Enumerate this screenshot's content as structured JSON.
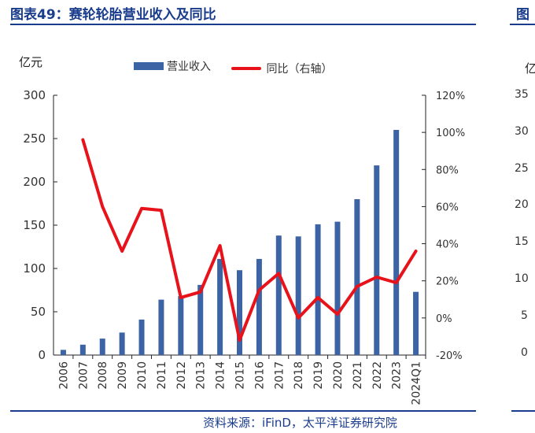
{
  "header": {
    "title": "图表49：赛轮轮胎营业收入及同比",
    "right_title_fragment": "图"
  },
  "source": "资料来源：iFinD，太平洋证券研究院",
  "ghost_panel": {
    "unit": "亿",
    "ticks": [
      "35",
      "30",
      "25",
      "20",
      "15",
      "10",
      "5",
      "0"
    ]
  },
  "colors": {
    "bar": "#3c63a3",
    "line": "#e8121a",
    "title": "#1a3c8c"
  },
  "chart_data": {
    "type": "bar",
    "title": "",
    "ylabel": "亿元",
    "categories": [
      "2006",
      "2007",
      "2008",
      "2009",
      "2010",
      "2011",
      "2012",
      "2013",
      "2014",
      "2015",
      "2016",
      "2017",
      "2018",
      "2019",
      "2020",
      "2021",
      "2022",
      "2023",
      "2024Q1"
    ],
    "series": [
      {
        "name": "营业收入",
        "type": "bar",
        "axis": "left",
        "values": [
          6,
          12,
          19,
          26,
          41,
          64,
          68,
          81,
          111,
          98,
          111,
          138,
          137,
          151,
          154,
          180,
          219,
          260,
          73
        ]
      },
      {
        "name": "同比（右轴）",
        "type": "line",
        "axis": "right",
        "values": [
          null,
          96,
          60,
          36,
          59,
          58,
          11,
          14,
          39,
          -12,
          15,
          24,
          0,
          11,
          2,
          17,
          22,
          19,
          36
        ]
      }
    ],
    "ylim": [
      0,
      300
    ],
    "yticks": [
      "0",
      "50",
      "100",
      "150",
      "200",
      "250",
      "300"
    ],
    "y2lim": [
      -20,
      120
    ],
    "y2ticks": [
      "-20%",
      "0%",
      "20%",
      "40%",
      "60%",
      "80%",
      "100%",
      "120%"
    ],
    "legend": "top-center",
    "grid": false
  }
}
